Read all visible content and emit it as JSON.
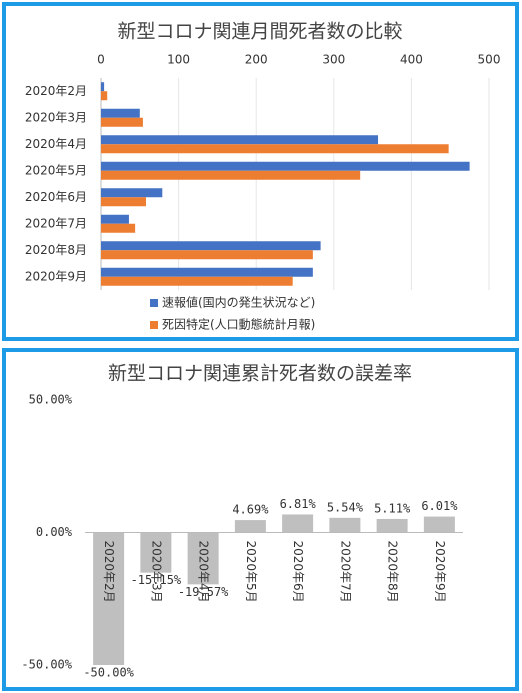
{
  "chart_data": [
    {
      "type": "hbar",
      "title": "新型コロナ関連月間死者数の比較",
      "categories": [
        "2020年2月",
        "2020年3月",
        "2020年4月",
        "2020年5月",
        "2020年6月",
        "2020年7月",
        "2020年8月",
        "2020年9月"
      ],
      "series": [
        {
          "name": "速報値(国内の発生状況など)",
          "color": "#4472c4",
          "values": [
            4,
            50,
            357,
            475,
            79,
            36,
            283,
            273
          ]
        },
        {
          "name": "死因特定(人口動態統計月報)",
          "color": "#ed7d31",
          "values": [
            8,
            54,
            448,
            334,
            58,
            44,
            273,
            247
          ]
        }
      ],
      "xlim": [
        0,
        500
      ],
      "xticks": [
        0,
        100,
        200,
        300,
        400,
        500
      ],
      "grid": true
    },
    {
      "type": "bar",
      "title": "新型コロナ関連累計死者数の誤差率",
      "categories": [
        "2020年2月",
        "2020年3月",
        "2020年4月",
        "2020年5月",
        "2020年6月",
        "2020年7月",
        "2020年8月",
        "2020年9月"
      ],
      "values": [
        -50,
        -15.15,
        -19.57,
        4.69,
        6.81,
        5.54,
        5.11,
        6.01
      ],
      "value_labels": [
        "-50.00%",
        "-15.15%",
        "-19.57%",
        "4.69%",
        "6.81%",
        "5.54%",
        "5.11%",
        "6.01%"
      ],
      "color": "#bfbfbf",
      "ylim": [
        -50,
        50
      ],
      "yticks": [
        {
          "value": -50,
          "label": "-50.00%"
        },
        {
          "value": 0,
          "label": "0.00%"
        },
        {
          "value": 50,
          "label": "50.00%"
        }
      ],
      "grid": false
    }
  ]
}
